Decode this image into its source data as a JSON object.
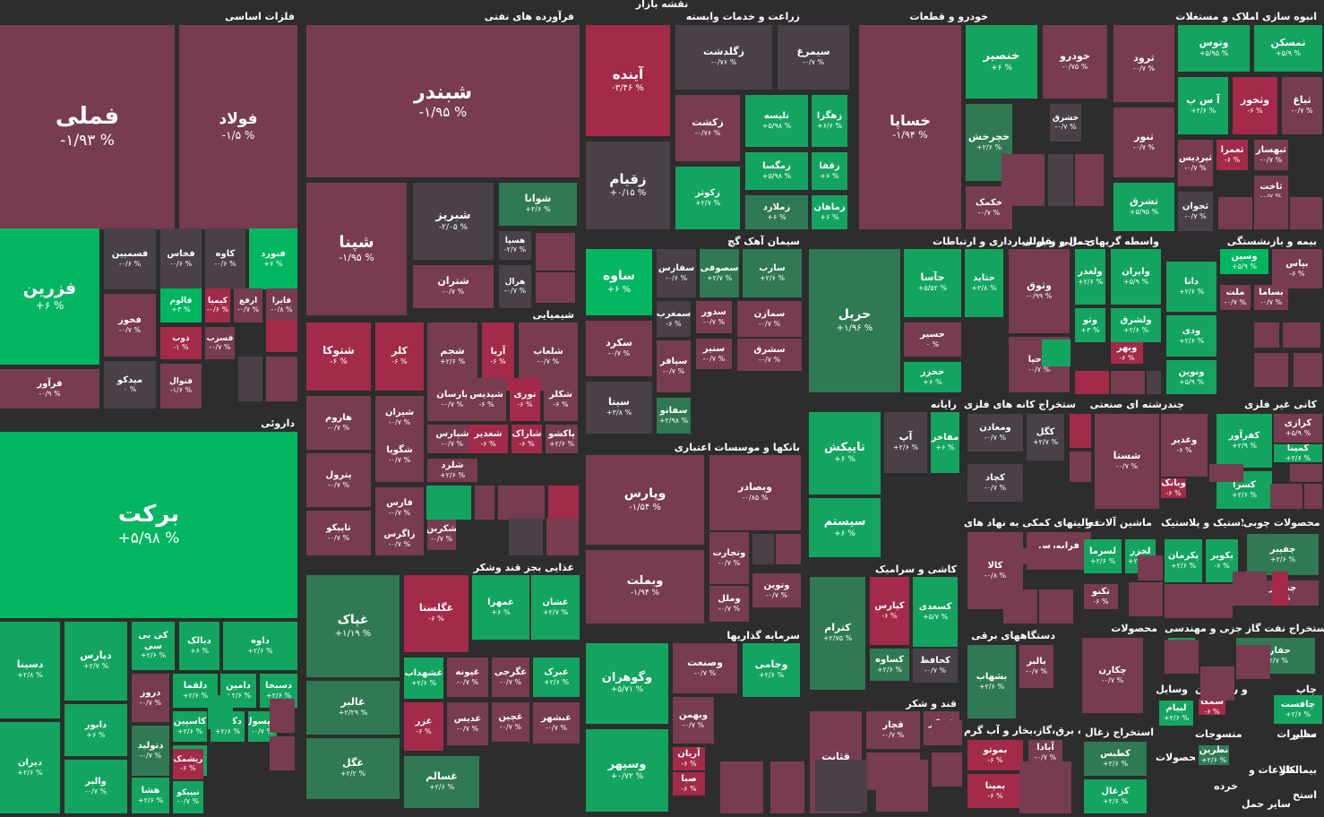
{
  "page_title": "نقشه بازار",
  "colors": {
    "background": "#2d2d2d",
    "negative_strong": "#a32a4a",
    "negative": "#773c50",
    "negative_light": "#6d4250",
    "neutral": "#4a4148",
    "positive_light": "#2f7a55",
    "positive": "#13a560",
    "positive_strong": "#00b661"
  },
  "sectors": [
    {
      "label": "فلزات اساسی",
      "tiles": [
        {
          "symbol": "فملی",
          "change": "-۱/۹۳ %"
        },
        {
          "symbol": "فولاد",
          "change": "-۱/۵ %"
        },
        {
          "symbol": "فزرین",
          "change": "+۶ %"
        },
        {
          "symbol": "فسمیین",
          "change": "-۰/۶ %"
        },
        {
          "symbol": "فخاس",
          "change": "-۰/۶ %"
        },
        {
          "symbol": "کاوه",
          "change": "-۰/۶ %"
        },
        {
          "symbol": "فنورد",
          "change": "+۶ %"
        },
        {
          "symbol": "فخوز",
          "change": "-۰/۷ %"
        },
        {
          "symbol": "فالوم",
          "change": "+۳ %"
        },
        {
          "symbol": "کیمیا",
          "change": "-۰/۶ %"
        },
        {
          "symbol": "ارفع",
          "change": "-۰/۷ %"
        },
        {
          "symbol": "فایرا",
          "change": "-۰/۸ %"
        },
        {
          "symbol": "فرآور",
          "change": "-۰/۹ %"
        },
        {
          "symbol": "میدکو",
          "change": "۰ %"
        },
        {
          "symbol": "ذوب",
          "change": "-۱ %"
        },
        {
          "symbol": "فسرب",
          "change": "-۰/۷ %"
        },
        {
          "symbol": "فنوال",
          "change": "-۱/۶ %"
        }
      ]
    },
    {
      "label": "فرآورده های نفتی",
      "tiles": [
        {
          "symbol": "شبندر",
          "change": "-۱/۹۵ %"
        },
        {
          "symbol": "شپنا",
          "change": "-۱/۹۵ %"
        },
        {
          "symbol": "شبریز",
          "change": "-۲/۰۵ %"
        },
        {
          "symbol": "شوانا",
          "change": "+۲/۶ %"
        },
        {
          "symbol": "هسپا",
          "change": "-۲/۷ %"
        },
        {
          "symbol": "شتران",
          "change": "-۰/۷ %"
        },
        {
          "symbol": "هرال",
          "change": "-۰/۷ %"
        }
      ]
    },
    {
      "label": "زراعت و خدمات وابسته",
      "tiles": [
        {
          "symbol": "آینده",
          "change": "-۳/۴۶ %"
        },
        {
          "symbol": "زقیام",
          "change": "+۰/۱۵ %"
        },
        {
          "symbol": "زگلدشت",
          "change": "-۰/۷۶ %"
        },
        {
          "symbol": "سیمرغ",
          "change": "-۰/۷ %"
        },
        {
          "symbol": "زکشت",
          "change": "-۰/۷۶ %"
        },
        {
          "symbol": "تلیسه",
          "change": "+۵/۹۸ %"
        },
        {
          "symbol": "زهگزا",
          "change": "+۶/۶ %"
        },
        {
          "symbol": "زکوثر",
          "change": "+۲/۷ %"
        },
        {
          "symbol": "زمگسا",
          "change": "+۵/۹۸ %"
        },
        {
          "symbol": "زقفا",
          "change": "+۶ %"
        },
        {
          "symbol": "زماهان",
          "change": "+۶ %"
        },
        {
          "symbol": "زملارد",
          "change": "+۶ %"
        }
      ]
    },
    {
      "label": "خودرو و قطعات",
      "tiles": [
        {
          "symbol": "خساپا",
          "change": "-۱/۹۴ %"
        },
        {
          "symbol": "خنصیر",
          "change": "+۶ %"
        },
        {
          "symbol": "خودرو",
          "change": "-۰/۷۵ %"
        },
        {
          "symbol": "خچرخش",
          "change": "+۲/۶ %"
        },
        {
          "symbol": "خشرق",
          "change": "-۰/۷ %"
        },
        {
          "symbol": "خکمک",
          "change": "-۰/۷ %"
        }
      ]
    },
    {
      "label": "انبوه سازی املاک و مستغلات",
      "tiles": [
        {
          "symbol": "ثرود",
          "change": "-۰/۷ %"
        },
        {
          "symbol": "وتوس",
          "change": "+۵/۹۵ %"
        },
        {
          "symbol": "ثمسکن",
          "change": "+۵/۹ %"
        },
        {
          "symbol": "ثنور",
          "change": "-۰/۷ %"
        },
        {
          "symbol": "آ س پ",
          "change": "+۲/۶ %"
        },
        {
          "symbol": "وثخوز",
          "change": "-۶ %"
        },
        {
          "symbol": "ثباغ",
          "change": "-۰/۷ %"
        },
        {
          "symbol": "ثپردیس",
          "change": "-۰/۷ %"
        },
        {
          "symbol": "ثعمرا",
          "change": "-۶ %"
        },
        {
          "symbol": "ثبهساز",
          "change": "-۰/۷ %"
        },
        {
          "symbol": "ثشرق",
          "change": "+۵/۹۵ %"
        },
        {
          "symbol": "ثجوان",
          "change": "-۰/۷ %"
        },
        {
          "symbol": "ثاخت",
          "change": "-۰/۷ %"
        }
      ]
    },
    {
      "label": "سیمان آهک گچ",
      "tiles": [
        {
          "symbol": "ساوه",
          "change": "+۶ %"
        },
        {
          "symbol": "سفارس",
          "change": "-۰/۶ %"
        },
        {
          "symbol": "سصوفی",
          "change": "+۲/۷ %"
        },
        {
          "symbol": "سارب",
          "change": "+۲/۶ %"
        },
        {
          "symbol": "سکرد",
          "change": "-۰/۷ %"
        },
        {
          "symbol": "سمغرب",
          "change": "-۶ %"
        },
        {
          "symbol": "سدور",
          "change": "-۰/۷ %"
        },
        {
          "symbol": "سمازن",
          "change": "-۰/۷ %"
        },
        {
          "symbol": "سنیر",
          "change": "-۰/۷ %"
        },
        {
          "symbol": "سشرق",
          "change": "-۰/۷ %"
        },
        {
          "symbol": "سیافر",
          "change": "-۰/۷ %"
        },
        {
          "symbol": "سیتا",
          "change": "+۳/۸ %"
        },
        {
          "symbol": "سفانو",
          "change": "+۲/۹۸ %"
        }
      ]
    },
    {
      "label": "حمل و نقل انبارداری و ارتباطات",
      "tiles": [
        {
          "symbol": "حریل",
          "change": "+۱/۹۶ %"
        },
        {
          "symbol": "حآسا",
          "change": "+۵/۵۲ %"
        },
        {
          "symbol": "حتاید",
          "change": "+۲/۸ %"
        },
        {
          "symbol": "حسیر",
          "change": "۰ %"
        },
        {
          "symbol": "حخزر",
          "change": "+۶ %"
        }
      ]
    },
    {
      "label": "واسطه گریهای مالی و پولی",
      "tiles": [
        {
          "symbol": "وثوق",
          "change": "-۰/۹۹ %"
        },
        {
          "symbol": "ولغدر",
          "change": "+۲/۶ %"
        },
        {
          "symbol": "وایران",
          "change": "+۵/۹ %"
        },
        {
          "symbol": "وثو",
          "change": "+۳ %"
        },
        {
          "symbol": "ولشرق",
          "change": "+۲/۶ %"
        },
        {
          "symbol": "واحیا",
          "change": "-۰/۷ %"
        },
        {
          "symbol": "وبهر",
          "change": "-۶ %"
        }
      ]
    },
    {
      "label": "بیمه و بازنشستگی",
      "tiles": [
        {
          "symbol": "بپاس",
          "change": "-۶ %"
        },
        {
          "symbol": "وسین",
          "change": "+۵/۹ %"
        },
        {
          "symbol": "ملت",
          "change": "-۰/۷ %"
        },
        {
          "symbol": "بساما",
          "change": "-۰/۷ %"
        },
        {
          "symbol": "دانا",
          "change": "+۲/۶ %"
        },
        {
          "symbol": "ودی",
          "change": "+۲/۶ %"
        },
        {
          "symbol": "ونوین",
          "change": "+۵/۹ %"
        }
      ]
    },
    {
      "label": "شیمیایی",
      "tiles": [
        {
          "symbol": "شتوکا",
          "change": "-۶ %"
        },
        {
          "symbol": "کلر",
          "change": "-۶ %"
        },
        {
          "symbol": "شجم",
          "change": "+۲/۶ %"
        },
        {
          "symbol": "آریا",
          "change": "-۶ %"
        },
        {
          "symbol": "شلعاب",
          "change": "-۰/۷ %"
        },
        {
          "symbol": "هاروم",
          "change": "-۰/۷ %"
        },
        {
          "symbol": "شیران",
          "change": "-۰/۷ %"
        },
        {
          "symbol": "پارسان",
          "change": "-۰/۷ %"
        },
        {
          "symbol": "شپدیس",
          "change": "-۶ %"
        },
        {
          "symbol": "نوری",
          "change": "-۶ %"
        },
        {
          "symbol": "شکلر",
          "change": "-۶ %"
        },
        {
          "symbol": "شگویا",
          "change": "-۰/۷ %"
        },
        {
          "symbol": "شپارس",
          "change": "-۰/۷ %"
        },
        {
          "symbol": "شغدیر",
          "change": "-۶ %"
        },
        {
          "symbol": "شاراک",
          "change": "-۶ %"
        },
        {
          "symbol": "پاکشو",
          "change": "+۲/۶ %"
        },
        {
          "symbol": "پترول",
          "change": "-۰/۷ %"
        },
        {
          "symbol": "شلرد",
          "change": "+۲/۶ %"
        },
        {
          "symbol": "فارس",
          "change": "-۰/۷ %"
        },
        {
          "symbol": "بوعلی",
          "change": "-۶ %"
        },
        {
          "symbol": "تاپیکو",
          "change": "-۰/۷ %"
        },
        {
          "symbol": "زاگرس",
          "change": "-۰/۷ %"
        },
        {
          "symbol": "شکربن",
          "change": "-۰/۷ %"
        }
      ]
    },
    {
      "label": "بانکها و موسسات اعتباری",
      "tiles": [
        {
          "symbol": "وپارس",
          "change": "-۱/۵۴ %"
        },
        {
          "symbol": "وبصادر",
          "change": "-۰/۸۵ %"
        },
        {
          "symbol": "وتجارت",
          "change": "-۰/۷ %"
        },
        {
          "symbol": "وبملت",
          "change": "-۱/۹۴ %"
        },
        {
          "symbol": "وتوین",
          "change": "-۰/۷ %"
        },
        {
          "symbol": "وملل",
          "change": "-۰/۷ %"
        }
      ]
    },
    {
      "label": "رایانه",
      "tiles": [
        {
          "symbol": "تاپیکش",
          "change": "+۶ %"
        },
        {
          "symbol": "آپ",
          "change": "+۲/۶ %"
        },
        {
          "symbol": "مفاخر",
          "change": "+۶ %"
        },
        {
          "symbol": "سیستم",
          "change": "+۶ %"
        }
      ]
    },
    {
      "label": "استخراج کانه های فلزی",
      "tiles": [
        {
          "symbol": "ومعادن",
          "change": "-۰/۷ %"
        },
        {
          "symbol": "کگل",
          "change": "+۲/۷ %"
        },
        {
          "symbol": "کچاد",
          "change": "-۰/۷ %"
        }
      ]
    },
    {
      "label": "چندرشته ای صنعتی",
      "tiles": [
        {
          "symbol": "شستا",
          "change": "-۰/۷ %"
        },
        {
          "symbol": "وغدیر",
          "change": "-۶ %"
        },
        {
          "symbol": "وبانک",
          "change": "-۶ %"
        }
      ]
    },
    {
      "label": "کانی غیر فلزی",
      "tiles": [
        {
          "symbol": "کفرآور",
          "change": "+۲/۹ %"
        },
        {
          "symbol": "کرازی",
          "change": "+۵/۹ %"
        },
        {
          "symbol": "کمینا",
          "change": "+۲/۶ %"
        },
        {
          "symbol": "کسرا",
          "change": "+۲/۶ %"
        }
      ]
    },
    {
      "label": "داروئی",
      "tiles": [
        {
          "symbol": "برکت",
          "change": "+۵/۹۸ %"
        },
        {
          "symbol": "دسینا",
          "change": "+۲/۸ %"
        },
        {
          "symbol": "دپارس",
          "change": "+۲/۷ %"
        },
        {
          "symbol": "کی بی سی",
          "change": "+۲/۶ %"
        },
        {
          "symbol": "دبالک",
          "change": "+۶ %"
        },
        {
          "symbol": "داوه",
          "change": "+۲/۶ %"
        },
        {
          "symbol": "دیران",
          "change": "+۲/۶ %"
        },
        {
          "symbol": "دروز",
          "change": "-۰/۷ %"
        },
        {
          "symbol": "دلقما",
          "change": "+۲/۶ %"
        },
        {
          "symbol": "دامین",
          "change": "+۲/۶ %"
        },
        {
          "symbol": "دسبحا",
          "change": "+۲/۶ %"
        },
        {
          "symbol": "دابور",
          "change": "+۶ %"
        },
        {
          "symbol": "دتولید",
          "change": "-۰/۷ %"
        },
        {
          "symbol": "کاسپین",
          "change": "+۲/۶ %"
        },
        {
          "symbol": "دکیمی",
          "change": "+۲/۶ %"
        },
        {
          "symbol": "دکپسول",
          "change": "-۰/۷ %"
        },
        {
          "symbol": "دحاوی",
          "change": "+۲/۶ %"
        },
        {
          "symbol": "والبر",
          "change": "-۰/۷ %"
        },
        {
          "symbol": "هشا",
          "change": "+۲/۶ %"
        },
        {
          "symbol": "ریشمک",
          "change": "-۶ %"
        },
        {
          "symbol": "تیپیکو",
          "change": "-۰/۷ %"
        }
      ]
    },
    {
      "label": "غذایی بجز قند وشکر",
      "tiles": [
        {
          "symbol": "غپاک",
          "change": "+۱/۱۹ %"
        },
        {
          "symbol": "غگلستا",
          "change": "-۶ %"
        },
        {
          "symbol": "غمهرا",
          "change": "+۶ %"
        },
        {
          "symbol": "غشان",
          "change": "+۲/۷ %"
        },
        {
          "symbol": "غالبر",
          "change": "+۲/۲۹ %"
        },
        {
          "symbol": "غشهداب",
          "change": "+۲/۶ %"
        },
        {
          "symbol": "غیونه",
          "change": "-۰/۷ %"
        },
        {
          "symbol": "غگرجی",
          "change": "-۰/۷ %"
        },
        {
          "symbol": "غبرک",
          "change": "+۲/۶ %"
        },
        {
          "symbol": "غزر",
          "change": "-۶ %"
        },
        {
          "symbol": "غدیس",
          "change": "-۰/۷ %"
        },
        {
          "symbol": "غچین",
          "change": "-۰/۷ %"
        },
        {
          "symbol": "غبشهر",
          "change": "-۰/۷ %"
        },
        {
          "symbol": "غگل",
          "change": "+۲/۲ %"
        },
        {
          "symbol": "غسالم",
          "change": "+۲/۶ %"
        }
      ]
    },
    {
      "label": "سرمایه گذاریها",
      "tiles": [
        {
          "symbol": "وگوهران",
          "change": "+۵/۷۱ %"
        },
        {
          "symbol": "وصنعت",
          "change": "-۰/۷ %"
        },
        {
          "symbol": "وجامی",
          "change": "+۲/۶ %"
        },
        {
          "symbol": "وبهمن",
          "change": "-۰/۷ %"
        },
        {
          "symbol": "وسپهر",
          "change": "+۰/۷۲ %"
        },
        {
          "symbol": "آریان",
          "change": "-۶ %"
        },
        {
          "symbol": "صبا",
          "change": "-۶ %"
        }
      ]
    },
    {
      "label": "کاشی و سرامیک",
      "tiles": [
        {
          "symbol": "کترام",
          "change": "+۲/۷۵ %"
        },
        {
          "symbol": "کپارس",
          "change": "-۶ %"
        },
        {
          "symbol": "کسعدی",
          "change": "+۵/۷ %"
        },
        {
          "symbol": "کساوه",
          "change": "+۲/۶ %"
        },
        {
          "symbol": "کحافظ",
          "change": "-۰/۷ %"
        }
      ]
    },
    {
      "label": "قند و شکر",
      "tiles": [
        {
          "symbol": "قثابت",
          "change": "-۰/۷ %"
        },
        {
          "symbol": "قچار",
          "change": "-۰/۷ %"
        },
        {
          "symbol": "قشکر",
          "change": "-۰/۷ %"
        },
        {
          "symbol": "قشیر",
          "change": "-۰/۷ %"
        }
      ]
    },
    {
      "label": "فعالیتهای کمکی به نهاد های",
      "tiles": [
        {
          "symbol": "کالا",
          "change": "-۰/۸ %"
        },
        {
          "symbol": "فرابورس",
          "change": "-۶ %"
        }
      ]
    },
    {
      "label": "دستگاههای برقی",
      "tiles": [
        {
          "symbol": "بشهاب",
          "change": "+۲/۶ %"
        },
        {
          "symbol": "بالبر",
          "change": "-۰/۷ %"
        }
      ]
    },
    {
      "label": "عرضه برق،گاز،بخار و آب گرم",
      "tiles": [
        {
          "symbol": "بموتو",
          "change": "-۶ %"
        },
        {
          "symbol": "آبادا",
          "change": "-۰/۷ %"
        },
        {
          "symbol": "بمپنا",
          "change": "-۶ %"
        }
      ]
    },
    {
      "label": "ماشین آلات و",
      "tiles": [
        {
          "symbol": "لسرما",
          "change": "+۲/۶ %"
        },
        {
          "symbol": "لخزر",
          "change": "+۲/۶ %"
        },
        {
          "symbol": "تکنو",
          "change": "-۶ %"
        }
      ]
    },
    {
      "label": "لاستیک و پلاستیک",
      "tiles": [
        {
          "symbol": "پکرمان",
          "change": "+۲/۶ %"
        },
        {
          "symbol": "پکویر",
          "change": "-۶ %"
        }
      ]
    },
    {
      "label": "محصولات چوبی",
      "tiles": [
        {
          "symbol": "چفیبر",
          "change": "+۲/۶ %"
        },
        {
          "symbol": "چنخزر",
          "change": "-۶ %"
        }
      ]
    },
    {
      "label": "محصولات",
      "tiles": [
        {
          "symbol": "چکارن",
          "change": "-۰/۷ %"
        }
      ]
    },
    {
      "label": "فنی و مهندسی",
      "tiles": [
        {
          "symbol": "تپولا",
          "change": "+۳ %"
        }
      ]
    },
    {
      "label": "استخراج نفت گاز جز",
      "tiles": [
        {
          "symbol": "حفاری",
          "change": "+۲/۷ %"
        }
      ]
    },
    {
      "label": "وسایل",
      "tiles": [
        {
          "symbol": "لپیام",
          "change": "+۲/۶ %"
        }
      ]
    },
    {
      "label": "هتل و رستوران",
      "tiles": [
        {
          "symbol": "سمگا",
          "change": "-۶ %"
        }
      ]
    },
    {
      "label": "چاپ",
      "tiles": [
        {
          "symbol": "چافست",
          "change": "+۲/۶ %"
        }
      ]
    },
    {
      "label": "استخراج زغال",
      "tiles": [
        {
          "symbol": "کطبس",
          "change": "+۲/۶ %"
        },
        {
          "symbol": "کزغال",
          "change": "+۲/۶ %"
        }
      ]
    },
    {
      "label": "منسوجات",
      "tiles": [
        {
          "symbol": "نطرین",
          "change": "+۲/۶ %"
        }
      ]
    },
    {
      "label": "سایر",
      "tiles": []
    },
    {
      "label": "مخابرات",
      "tiles": []
    },
    {
      "label": "محصولات",
      "tiles": []
    },
    {
      "label": "بیمانکار",
      "tiles": []
    },
    {
      "label": "اطلاعات و",
      "tiles": []
    },
    {
      "label": "خرده",
      "tiles": []
    },
    {
      "label": "استخ",
      "tiles": []
    },
    {
      "label": "سایر حمل",
      "tiles": []
    }
  ]
}
